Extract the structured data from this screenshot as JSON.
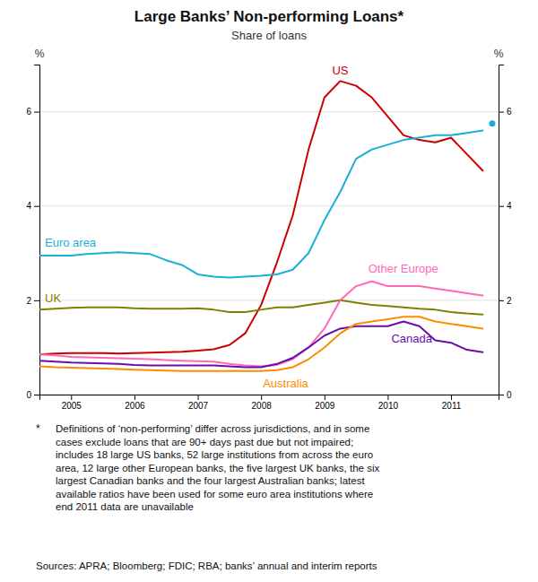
{
  "chart_data": {
    "type": "line",
    "title": "Large Banks’ Non-performing Loans*",
    "subtitle": "Share of loans",
    "ylabel": "%",
    "y2label": "%",
    "xlim": [
      2004.5,
      2011.75
    ],
    "ylim": [
      0,
      7
    ],
    "y2lim": [
      0,
      7
    ],
    "xticks": [
      2005,
      2006,
      2007,
      2008,
      2009,
      2010,
      2011
    ],
    "yticks": [
      0,
      2,
      4,
      6
    ],
    "y2ticks": [
      0,
      2,
      4,
      6
    ],
    "grid": true,
    "x": [
      2004.5,
      2004.75,
      2005.0,
      2005.25,
      2005.5,
      2005.75,
      2006.0,
      2006.25,
      2006.5,
      2006.75,
      2007.0,
      2007.25,
      2007.5,
      2007.75,
      2008.0,
      2008.25,
      2008.5,
      2008.75,
      2009.0,
      2009.25,
      2009.5,
      2009.75,
      2010.0,
      2010.25,
      2010.5,
      2010.75,
      2011.0,
      2011.25,
      2011.5
    ],
    "series": [
      {
        "name": "US",
        "color": "#cc0000",
        "values": [
          0.85,
          0.87,
          0.88,
          0.88,
          0.88,
          0.87,
          0.88,
          0.89,
          0.9,
          0.91,
          0.93,
          0.96,
          1.05,
          1.3,
          1.9,
          2.8,
          3.8,
          5.2,
          6.3,
          6.65,
          6.55,
          6.3,
          5.9,
          5.5,
          5.4,
          5.35,
          5.45,
          5.1,
          4.75
        ]
      },
      {
        "name": "Euro area",
        "color": "#1ab0d5",
        "values": [
          2.95,
          2.95,
          2.95,
          2.98,
          3.0,
          3.02,
          3.0,
          2.98,
          2.85,
          2.75,
          2.55,
          2.5,
          2.48,
          2.5,
          2.52,
          2.55,
          2.65,
          3.0,
          3.7,
          4.3,
          5.0,
          5.2,
          5.3,
          5.4,
          5.45,
          5.5,
          5.5,
          5.55,
          5.6
        ],
        "dot": {
          "x": 2011.65,
          "y": 5.75
        }
      },
      {
        "name": "UK",
        "color": "#808000",
        "values": [
          1.8,
          1.82,
          1.84,
          1.85,
          1.85,
          1.85,
          1.83,
          1.82,
          1.82,
          1.82,
          1.83,
          1.8,
          1.75,
          1.75,
          1.8,
          1.85,
          1.85,
          1.9,
          1.95,
          2.0,
          1.95,
          1.9,
          1.88,
          1.85,
          1.82,
          1.8,
          1.75,
          1.72,
          1.7
        ]
      },
      {
        "name": "Other Europe",
        "color": "#ff69b4",
        "values": [
          0.85,
          0.83,
          0.8,
          0.79,
          0.78,
          0.77,
          0.76,
          0.75,
          0.73,
          0.72,
          0.71,
          0.7,
          0.65,
          0.62,
          0.6,
          0.63,
          0.75,
          1.0,
          1.4,
          2.0,
          2.3,
          2.4,
          2.3,
          2.3,
          2.3,
          2.25,
          2.2,
          2.15,
          2.1
        ]
      },
      {
        "name": "Canada",
        "color": "#6a0dad",
        "values": [
          0.72,
          0.7,
          0.68,
          0.67,
          0.66,
          0.65,
          0.63,
          0.62,
          0.62,
          0.62,
          0.62,
          0.62,
          0.6,
          0.58,
          0.58,
          0.65,
          0.78,
          1.0,
          1.25,
          1.4,
          1.45,
          1.45,
          1.45,
          1.55,
          1.45,
          1.15,
          1.1,
          0.95,
          0.9
        ]
      },
      {
        "name": "Australia",
        "color": "#ff8c00",
        "values": [
          0.6,
          0.58,
          0.57,
          0.56,
          0.55,
          0.54,
          0.53,
          0.52,
          0.51,
          0.5,
          0.5,
          0.5,
          0.5,
          0.5,
          0.5,
          0.52,
          0.58,
          0.75,
          1.0,
          1.3,
          1.5,
          1.55,
          1.6,
          1.65,
          1.65,
          1.55,
          1.5,
          1.45,
          1.4
        ]
      }
    ],
    "footnote_marker": "*",
    "footnote": [
      "Definitions of ‘non-performing’ differ across jurisdictions, and in some",
      "cases exclude loans that are 90+ days past due but not impaired;",
      "includes 18 large US banks, 52 large institutions from across the euro",
      "area, 12 large other European banks, the five largest UK banks, the six",
      "largest Canadian banks and the four largest Australian banks; latest",
      "available ratios have been used for some euro area institutions where",
      "end 2011 data are unavailable"
    ],
    "sources": "Sources: APRA; Bloomberg; FDIC; RBA; banks’ annual and interim reports"
  }
}
